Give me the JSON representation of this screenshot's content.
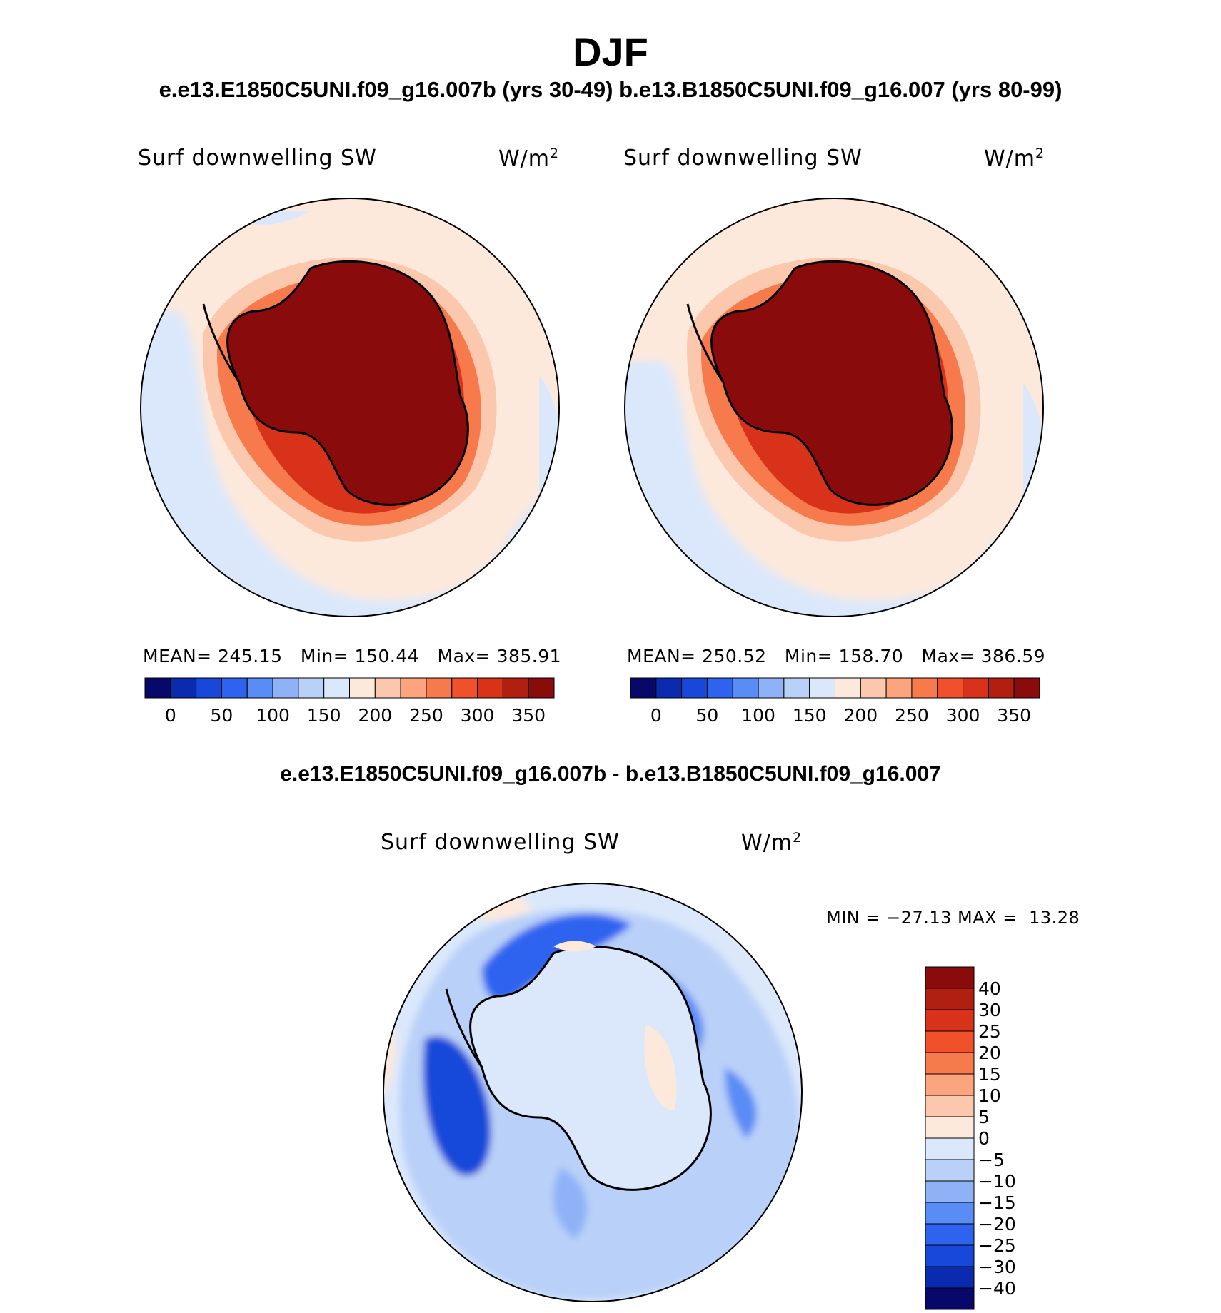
{
  "title": "DJF",
  "subtitle": "e.e13.E1850C5UNI.f09_g16.007b (yrs 30-49)  b.e13.B1850C5UNI.f09_g16.007 (yrs 80-99)",
  "diff_title": "e.e13.E1850C5UNI.f09_g16.007b - b.e13.B1850C5UNI.f09_g16.007",
  "panels": [
    {
      "variable": "Surf downwelling SW",
      "unit_base": "W/m",
      "unit_exp": "2",
      "mean_label": "MEAN=",
      "mean": "245.15",
      "min_label": "Min=",
      "min": "150.44",
      "max_label": "Max=",
      "max": "385.91"
    },
    {
      "variable": "Surf downwelling SW",
      "unit_base": "W/m",
      "unit_exp": "2",
      "mean_label": "MEAN=",
      "mean": "250.52",
      "min_label": "Min=",
      "min": "158.70",
      "max_label": "Max=",
      "max": "386.59"
    }
  ],
  "colorbar": {
    "colors": [
      "#08086b",
      "#0a2bb0",
      "#1748d9",
      "#2e63f0",
      "#5a8cf5",
      "#8fb2f7",
      "#b9d0f8",
      "#dbe8fb",
      "#fde9dc",
      "#fcc8ad",
      "#fba47d",
      "#f77a4c",
      "#f0502a",
      "#d8321a",
      "#b01f10",
      "#8a0b0b"
    ],
    "ticks": [
      "0",
      "50",
      "100",
      "150",
      "200",
      "250",
      "300",
      "350"
    ]
  },
  "diff_panel": {
    "variable": "Surf downwelling SW",
    "unit_base": "W/m",
    "unit_exp": "2",
    "minmax": "MIN = −27.13 MAX =  13.28"
  },
  "diff_colorbar": {
    "colors": [
      "#8a0b0b",
      "#b01f10",
      "#d8321a",
      "#f0502a",
      "#f77a4c",
      "#fba47d",
      "#fcc8ad",
      "#fde9dc",
      "#dbe8fb",
      "#b9d0f8",
      "#8fb2f7",
      "#5a8cf5",
      "#2e63f0",
      "#1748d9",
      "#0a2bb0",
      "#08086b"
    ],
    "ticks": [
      "40",
      "30",
      "25",
      "20",
      "15",
      "10",
      "5",
      "0",
      "−5",
      "−10",
      "−15",
      "−20",
      "−25",
      "−30",
      "−40"
    ]
  }
}
